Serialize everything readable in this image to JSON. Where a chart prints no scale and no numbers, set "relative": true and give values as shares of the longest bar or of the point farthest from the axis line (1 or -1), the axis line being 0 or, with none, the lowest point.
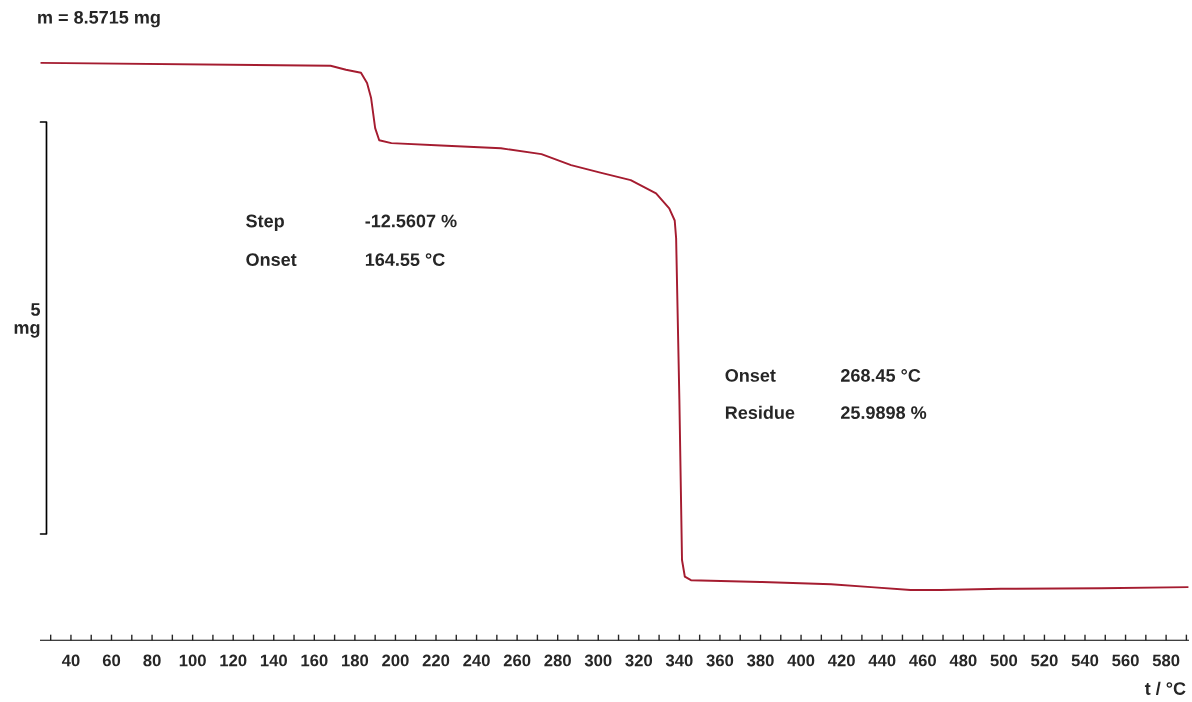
{
  "chart_data": {
    "type": "line",
    "title": "m = 8.5715 mg",
    "xlabel": "t / °C",
    "relative": true,
    "x": [
      25,
      168,
      175.6,
      183,
      186,
      188,
      190,
      192,
      198,
      222.5,
      252,
      272,
      286.6,
      301,
      316,
      328.5,
      335,
      337.7,
      338.4,
      340,
      341.3,
      342.7,
      345.7,
      380,
      414.8,
      434.5,
      454,
      469,
      498.6,
      548,
      591
    ],
    "series": [
      {
        "color": "#a51c30",
        "values": [
          1.0,
          0.995,
          0.988,
          0.983,
          0.965,
          0.939,
          0.887,
          0.866,
          0.861,
          0.857,
          0.852,
          0.842,
          0.823,
          0.81,
          0.797,
          0.774,
          0.748,
          0.727,
          0.696,
          0.417,
          0.139,
          0.11,
          0.104,
          0.101,
          0.097,
          0.092,
          0.087,
          0.087,
          0.089,
          0.09,
          0.092
        ]
      }
    ],
    "xlim": [
      25,
      591
    ],
    "xticks": [
      {
        "value": 30,
        "label": null
      },
      40,
      {
        "value": 50,
        "label": null
      },
      60,
      {
        "value": 70,
        "label": null
      },
      80,
      {
        "value": 90,
        "label": null
      },
      100,
      {
        "value": 110,
        "label": null
      },
      120,
      {
        "value": 130,
        "label": null
      },
      140,
      {
        "value": 150,
        "label": null
      },
      160,
      {
        "value": 170,
        "label": null
      },
      180,
      {
        "value": 190,
        "label": null
      },
      200,
      {
        "value": 210,
        "label": null
      },
      220,
      {
        "value": 230,
        "label": null
      },
      240,
      {
        "value": 250,
        "label": null
      },
      260,
      {
        "value": 270,
        "label": null
      },
      280,
      {
        "value": 290,
        "label": null
      },
      300,
      {
        "value": 310,
        "label": null
      },
      320,
      {
        "value": 330,
        "label": null
      },
      340,
      {
        "value": 350,
        "label": null
      },
      360,
      {
        "value": 370,
        "label": null
      },
      380,
      {
        "value": 390,
        "label": null
      },
      400,
      {
        "value": 410,
        "label": null
      },
      420,
      {
        "value": 430,
        "label": null
      },
      440,
      {
        "value": 450,
        "label": null
      },
      460,
      {
        "value": 470,
        "label": null
      },
      480,
      {
        "value": 490,
        "label": null
      },
      500,
      {
        "value": 510,
        "label": null
      },
      520,
      {
        "value": 530,
        "label": null
      },
      540,
      {
        "value": 550,
        "label": null
      },
      560,
      {
        "value": 570,
        "label": null
      },
      580,
      {
        "value": 590,
        "label": null
      }
    ],
    "annotations": [
      "Step",
      "-12.5607 %",
      "Onset",
      "164.55 °C",
      "Onset",
      "268.45 °C",
      "Residue",
      "25.9898 %",
      "5\nmg"
    ],
    "marker": "none",
    "line_style": "solid"
  }
}
